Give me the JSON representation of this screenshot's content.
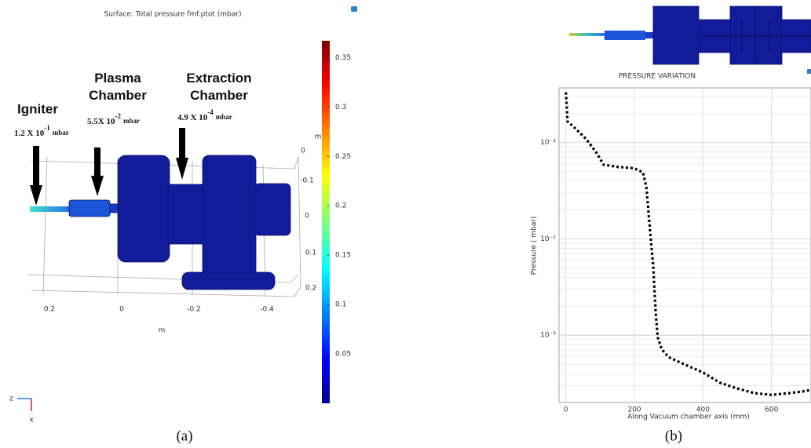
{
  "panel_a": {
    "title": "Surface: Total pressure fmf.ptot (mbar)",
    "annotations": [
      {
        "name": "Igniter",
        "base": "1.2 X 10",
        "exponent": "-1",
        "unit": "mbar"
      },
      {
        "name": "Plasma Chamber",
        "base": "5.5X 10",
        "exponent": "-2",
        "unit": "mbar"
      },
      {
        "name": "Extraction Chamber",
        "base": "4.9 X 10",
        "exponent": "-4",
        "unit": "mbar"
      }
    ],
    "x_axis_ticks": [
      0.2,
      0,
      -0.2,
      -0.4
    ],
    "x_axis_unit": "m",
    "side_axis_ticks": [
      0,
      -0.1,
      0,
      0.1,
      0.2
    ],
    "side_axis_unit": "m",
    "triad": [
      "z",
      "x"
    ],
    "colorbar": {
      "lim": [
        0,
        0.367
      ],
      "ticks": [
        0.05,
        0.1,
        0.15,
        0.2,
        0.25,
        0.3,
        0.35
      ]
    },
    "caption": "(a)"
  },
  "chart_data": {
    "type": "line",
    "title": "PRESSURE  VARIATION",
    "x_label": "Along Vacuum chamber axis (mm)",
    "y_label": "Pressure ( mbar)",
    "x": [
      0,
      2,
      5,
      30,
      60,
      90,
      110,
      150,
      200,
      225,
      235,
      245,
      255,
      262,
      268,
      280,
      300,
      350,
      400,
      450,
      500,
      550,
      600,
      650,
      690,
      715
    ],
    "values": [
      0.333,
      0.266,
      0.166,
      0.138,
      0.108,
      0.078,
      0.059,
      0.056,
      0.054,
      0.049,
      0.034,
      0.013,
      0.0051,
      0.0017,
      0.00095,
      0.00071,
      0.00059,
      0.00049,
      0.00041,
      0.00032,
      0.00028,
      0.00025,
      0.00024,
      0.00025,
      0.00026,
      0.00027
    ],
    "color": "#000000",
    "line_style": "dotted",
    "xlim": [
      -20,
      715
    ],
    "xticks": [
      0,
      200,
      400,
      600
    ],
    "ylim": [
      0.0002,
      0.37
    ],
    "yticks": [
      {
        "value": 0.1,
        "label": "10⁻¹"
      },
      {
        "value": 0.01,
        "label": "10⁻²"
      },
      {
        "value": 0.001,
        "label": "10⁻³"
      }
    ],
    "log_y": true,
    "grid": true,
    "minor_grid": true,
    "caption": "(b)"
  }
}
